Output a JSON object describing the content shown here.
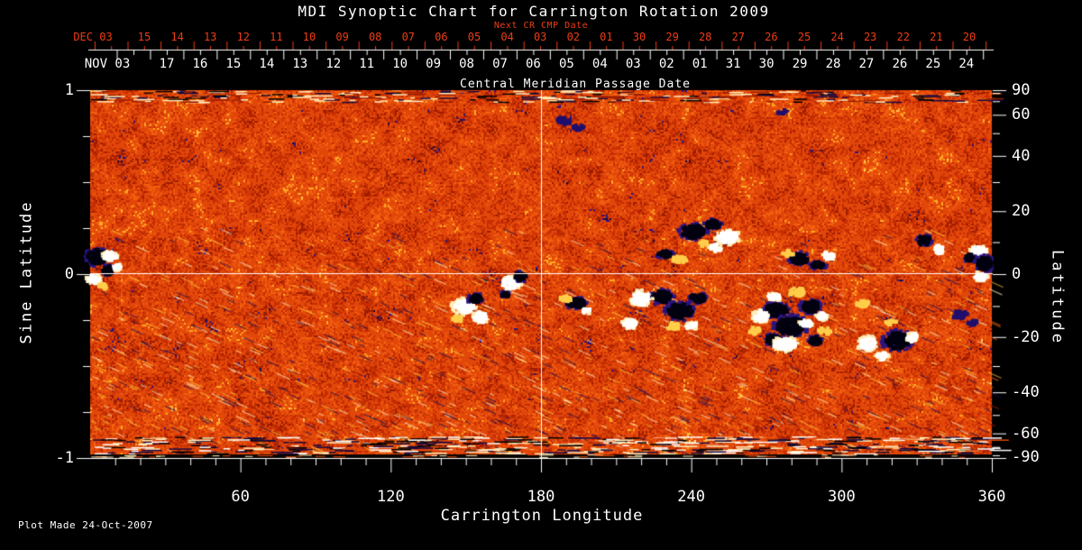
{
  "title": "MDI Synoptic Chart for Carrington Rotation 2009",
  "annotations": {
    "next_cr": "Next CR CMP Date",
    "cmp": "Central Meridian Passage Date",
    "plot_made": "Plot Made 24-Oct-2007"
  },
  "colors": {
    "background": "#000000",
    "foreground": "#ffffff",
    "accent_red": "#ee3d14"
  },
  "chart_data": {
    "type": "heatmap",
    "title": "MDI Synoptic Chart for Carrington Rotation 2009",
    "xlabel": "Carrington Longitude",
    "ylabel_left": "Sine Latitude",
    "ylabel_right": "Latitude",
    "xlim": [
      0,
      360
    ],
    "ylim_sine": [
      -1,
      1
    ],
    "x_tick_labels": [
      "60",
      "120",
      "180",
      "240",
      "300",
      "360"
    ],
    "x_tick_values": [
      60,
      120,
      180,
      240,
      300,
      360
    ],
    "x_minor_step_deg": 10,
    "left_tick_labels": [
      "1",
      "0",
      "-1"
    ],
    "left_tick_values": [
      1,
      0,
      -1
    ],
    "left_minor_values": [
      0.75,
      0.5,
      0.25,
      -0.25,
      -0.5,
      -0.75
    ],
    "right_tick_labels": [
      "90",
      "60",
      "40",
      "20",
      "0",
      "-20",
      "-40",
      "-60",
      "-90"
    ],
    "right_tick_values": [
      90,
      60,
      40,
      20,
      0,
      -20,
      -40,
      -60,
      -90
    ],
    "right_minor_values": [
      80,
      70,
      50,
      30,
      10,
      -10,
      -30,
      -50,
      -70,
      -80
    ],
    "crosshair": {
      "longitude": 180,
      "sine_latitude": 0
    },
    "next_cr_dates": {
      "month_label": "DEC 03",
      "days": [
        "15",
        "14",
        "13",
        "12",
        "11",
        "10",
        "09",
        "08",
        "07",
        "06",
        "05",
        "04",
        "03",
        "02",
        "01",
        "30",
        "29",
        "28",
        "27",
        "26",
        "25",
        "24",
        "23",
        "22",
        "21",
        "20"
      ]
    },
    "cmp_dates": {
      "month_label": "NOV 03",
      "days": [
        "17",
        "16",
        "15",
        "14",
        "13",
        "12",
        "11",
        "10",
        "09",
        "08",
        "07",
        "06",
        "05",
        "04",
        "03",
        "02",
        "01",
        "31",
        "30",
        "29",
        "28",
        "27",
        "26",
        "25",
        "24"
      ]
    },
    "palette": [
      {
        "t": 0.055,
        "c": "#140840"
      },
      {
        "t": 0.095,
        "c": "#2a1580"
      },
      {
        "t": 0.21,
        "c": "#9c1c00"
      },
      {
        "t": 0.4,
        "c": "#c52d02"
      },
      {
        "t": 0.72,
        "c": "#e2470a"
      },
      {
        "t": 0.86,
        "c": "#f2600f"
      },
      {
        "t": 0.95,
        "c": "#ffab24"
      },
      {
        "t": 0.985,
        "c": "#ffd75e"
      },
      {
        "t": 1.01,
        "c": "#ffeebc"
      }
    ],
    "spot_colors": {
      "dark_core": "#020210",
      "dark_fringe": "#2a1580",
      "white_core": "#ffffff",
      "white_fringe": "#ffedb6",
      "yellow": "#ffce4a",
      "navy": "#1f0f6e"
    },
    "active_regions": [
      [
        "d",
        8,
        185,
        12,
        9
      ],
      [
        "d",
        20,
        200,
        7,
        5
      ],
      [
        "w",
        22,
        184,
        8,
        5
      ],
      [
        "w",
        5,
        210,
        8,
        5
      ],
      [
        "w",
        30,
        196,
        5,
        4
      ],
      [
        "y",
        14,
        218,
        6,
        3
      ],
      [
        "w",
        415,
        240,
        12,
        8
      ],
      [
        "w",
        433,
        252,
        8,
        6
      ],
      [
        "d",
        427,
        231,
        8,
        5
      ],
      [
        "y",
        407,
        254,
        6,
        4
      ],
      [
        "w",
        467,
        214,
        10,
        7
      ],
      [
        "d",
        477,
        207,
        7,
        5
      ],
      [
        "d",
        461,
        227,
        5,
        3
      ],
      [
        "d",
        539,
        236,
        11,
        6
      ],
      [
        "w",
        551,
        245,
        5,
        3
      ],
      [
        "y",
        527,
        231,
        7,
        4
      ],
      [
        "d",
        669,
        157,
        14,
        8
      ],
      [
        "d",
        691,
        149,
        9,
        5
      ],
      [
        "w",
        707,
        163,
        12,
        7
      ],
      [
        "w",
        694,
        175,
        7,
        4
      ],
      [
        "y",
        681,
        170,
        6,
        3
      ],
      [
        "d",
        637,
        182,
        9,
        4
      ],
      [
        "y",
        654,
        188,
        8,
        4
      ],
      [
        "d",
        634,
        229,
        12,
        7
      ],
      [
        "d",
        654,
        245,
        15,
        9
      ],
      [
        "d",
        674,
        231,
        9,
        5
      ],
      [
        "w",
        611,
        231,
        11,
        8
      ],
      [
        "w",
        599,
        259,
        8,
        5
      ],
      [
        "w",
        667,
        261,
        6,
        4
      ],
      [
        "y",
        647,
        262,
        7,
        4
      ],
      [
        "d",
        761,
        244,
        13,
        8
      ],
      [
        "d",
        777,
        262,
        17,
        11
      ],
      [
        "d",
        799,
        240,
        11,
        7
      ],
      [
        "d",
        757,
        277,
        9,
        6
      ],
      [
        "d",
        804,
        278,
        7,
        5
      ],
      [
        "w",
        744,
        251,
        9,
        6
      ],
      [
        "w",
        771,
        282,
        13,
        7
      ],
      [
        "w",
        794,
        259,
        7,
        4
      ],
      [
        "w",
        811,
        251,
        6,
        4
      ],
      [
        "w",
        759,
        229,
        7,
        4
      ],
      [
        "y",
        784,
        224,
        9,
        5
      ],
      [
        "y",
        814,
        267,
        7,
        4
      ],
      [
        "y",
        737,
        267,
        6,
        4
      ],
      [
        "d",
        787,
        187,
        11,
        6
      ],
      [
        "d",
        807,
        194,
        8,
        4
      ],
      [
        "w",
        819,
        184,
        6,
        4
      ],
      [
        "y",
        774,
        181,
        6,
        3
      ],
      [
        "w",
        862,
        281,
        10,
        7
      ],
      [
        "d",
        895,
        278,
        15,
        10
      ],
      [
        "w",
        912,
        274,
        6,
        5
      ],
      [
        "y",
        888,
        257,
        7,
        3
      ],
      [
        "w",
        878,
        295,
        7,
        4
      ],
      [
        "w",
        985,
        179,
        9,
        6
      ],
      [
        "d",
        992,
        192,
        9,
        8
      ],
      [
        "w",
        988,
        207,
        7,
        5
      ],
      [
        "d",
        976,
        186,
        6,
        4
      ],
      [
        "d",
        925,
        167,
        8,
        6
      ],
      [
        "w",
        941,
        177,
        5,
        5
      ],
      [
        "n",
        525,
        34,
        9,
        4
      ],
      [
        "n",
        541,
        41,
        6,
        3
      ],
      [
        "n",
        768,
        24,
        6,
        3
      ],
      [
        "n",
        965,
        249,
        9,
        5
      ],
      [
        "n",
        978,
        258,
        6,
        3
      ],
      [
        "y",
        857,
        237,
        8,
        4
      ]
    ]
  }
}
